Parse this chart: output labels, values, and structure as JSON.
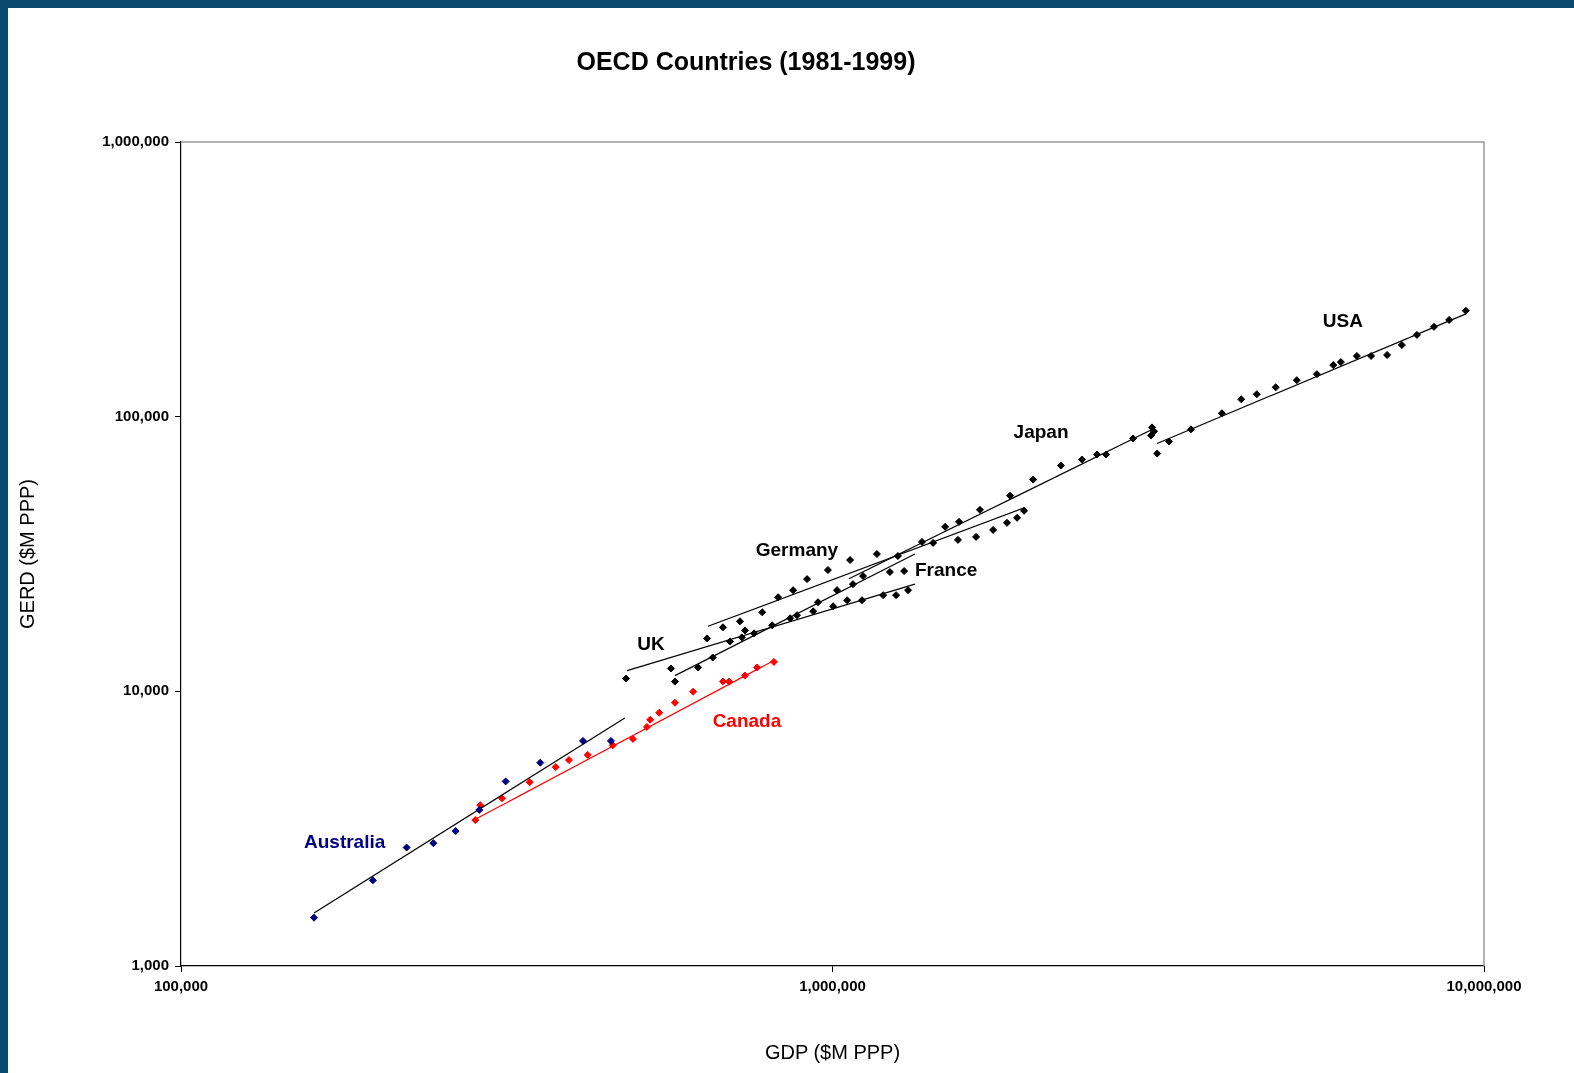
{
  "chart_data": {
    "type": "scatter",
    "title": "OECD Countries (1981-1999)",
    "xlabel": "GDP ($M PPP)",
    "ylabel": "GERD ($M PPP)",
    "log": "xy",
    "grid": false,
    "legend": false,
    "marker": "diamond",
    "xlim": [
      100000,
      10000000
    ],
    "xticks": [
      {
        "value": 100000,
        "label": "100,000"
      },
      {
        "value": 1000000,
        "label": "1,000,000"
      },
      {
        "value": 10000000,
        "label": "10,000,000"
      }
    ],
    "ylim": [
      1000,
      1000000
    ],
    "yticks": [
      {
        "value": 1000,
        "label": "1,000"
      },
      {
        "value": 10000,
        "label": "10,000"
      },
      {
        "value": 100000,
        "label": "100,000"
      },
      {
        "value": 1000000,
        "label": "1,000,000"
      }
    ],
    "series": [
      {
        "name": "Australia",
        "color": "#000080",
        "x": [
          160000,
          197000,
          222000,
          244000,
          264000,
          287000,
          315000,
          356000,
          414000,
          457000
        ],
        "values": [
          1500,
          2050,
          2700,
          2800,
          3100,
          3700,
          4700,
          5500,
          6600,
          6600
        ]
      },
      {
        "type": "line",
        "color": "#000000",
        "marker": "none",
        "x": [
          160000,
          480000
        ],
        "values": [
          1560,
          8000
        ]
      },
      {
        "name": "Canada",
        "color": "#ff0000",
        "x": [
          283000,
          288000,
          311000,
          343000,
          376000,
          394000,
          421000,
          460000,
          494000,
          519000,
          525000,
          542000,
          573000,
          611000,
          679000,
          694000,
          734000,
          766000,
          813000
        ],
        "values": [
          3400,
          3850,
          4080,
          4670,
          5300,
          5620,
          5870,
          6360,
          6710,
          7420,
          7880,
          8360,
          9090,
          9970,
          10850,
          10850,
          11410,
          12210,
          12800
        ]
      },
      {
        "type": "line",
        "color": "#ff0000",
        "marker": "none",
        "x": [
          283000,
          813000
        ],
        "values": [
          3420,
          12950
        ]
      },
      {
        "name": "UK",
        "color": "#000000",
        "x": [
          482000,
          565000,
          642000,
          734000,
          861000,
          1002000,
          1053000,
          1110000,
          1196000,
          1252000,
          1306000
        ],
        "values": [
          11130,
          12110,
          15580,
          16670,
          18450,
          20400,
          21460,
          21460,
          22390,
          22390,
          23350
        ]
      },
      {
        "type": "line",
        "color": "#000000",
        "marker": "none",
        "x": [
          484000,
          1338000
        ],
        "values": [
          11900,
          24560
        ]
      },
      {
        "name": "France",
        "color": "#000000",
        "x": [
          573000,
          622000,
          655000,
          696000,
          726000,
          758000,
          808000,
          882000,
          934000,
          950000,
          1016000,
          1075000,
          1114000,
          1225000,
          1288000
        ],
        "values": [
          10850,
          12210,
          13280,
          15190,
          15720,
          16260,
          17390,
          18920,
          19560,
          21110,
          23350,
          24560,
          26280,
          27180,
          27410
        ]
      },
      {
        "type": "line",
        "color": "#000000",
        "marker": "none",
        "x": [
          573000,
          1338000
        ],
        "values": [
          11410,
          31620
        ]
      },
      {
        "name": "Germany",
        "color": "#000000",
        "x": [
          679000,
          721000,
          780000,
          825000,
          870000,
          914000,
          984000,
          1260000,
          1558000,
          1661000,
          1764000,
          1853000,
          1920000,
          1968000
        ],
        "values": [
          17100,
          17980,
          19400,
          22010,
          23350,
          25620,
          27640,
          31100,
          35590,
          36500,
          38700,
          41070,
          42830,
          45430
        ]
      },
      {
        "type": "line",
        "color": "#000000",
        "marker": "none",
        "x": [
          644000,
          1968000
        ],
        "values": [
          17250,
          46600
        ]
      },
      {
        "name": "Japan",
        "color": "#000000",
        "x": [
          1064000,
          1170000,
          1372000,
          1427000,
          1489000,
          1564000,
          1684000,
          1873000,
          2032000,
          2242000,
          2415000,
          2547000,
          2630000,
          2893000,
          3083000,
          3094000,
          3116000
        ],
        "values": [
          30060,
          31620,
          34990,
          34700,
          39700,
          41400,
          45800,
          51560,
          59000,
          66370,
          69800,
          72800,
          72800,
          83300,
          85450,
          91400,
          88400
        ]
      },
      {
        "type": "line",
        "color": "#000000",
        "marker": "none",
        "x": [
          1060000,
          3116000
        ],
        "values": [
          25700,
          90600
        ]
      },
      {
        "name": "USA",
        "color": "#000000",
        "x": [
          3150000,
          3285000,
          3550000,
          3960000,
          4240000,
          4480000,
          4790000,
          5160000,
          5540000,
          5870000,
          6030000,
          6380000,
          6710000,
          7100000,
          7480000,
          7890000,
          8380000,
          8840000,
          9380000
        ],
        "values": [
          73400,
          81200,
          89900,
          102900,
          115700,
          120700,
          128000,
          135800,
          142800,
          154100,
          158000,
          166300,
          166300,
          167700,
          182400,
          198500,
          212300,
          225100,
          242900
        ]
      },
      {
        "type": "line",
        "color": "#000000",
        "marker": "none",
        "x": [
          3150000,
          9380000
        ],
        "values": [
          79900,
          236800
        ]
      }
    ]
  }
}
